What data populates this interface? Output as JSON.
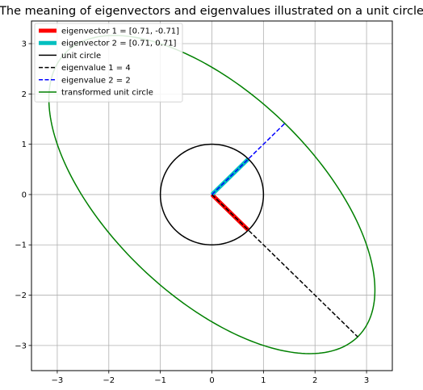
{
  "chart_data": {
    "type": "line",
    "title": "The meaning of eigenvectors and eigenvalues illustrated on a unit circle",
    "xlabel": "",
    "ylabel": "",
    "xlim": [
      -3.5,
      3.5
    ],
    "ylim": [
      -3.5,
      3.45
    ],
    "xticks": [
      -3,
      -2,
      -1,
      0,
      1,
      2,
      3
    ],
    "yticks": [
      -3,
      -2,
      -1,
      0,
      1,
      2,
      3
    ],
    "xtick_labels": [
      "−3",
      "−2",
      "−1",
      "0",
      "1",
      "2",
      "3"
    ],
    "ytick_labels": [
      "−3",
      "−2",
      "−1",
      "0",
      "1",
      "2",
      "3"
    ],
    "grid": true,
    "legend_position": "upper-left",
    "series": [
      {
        "name": "eigenvector 1 = [0.71, -0.71]",
        "kind": "segment",
        "color": "#ff0000",
        "linestyle": "solid",
        "linewidth": "thick",
        "x": [
          0,
          0.71
        ],
        "y": [
          0,
          -0.71
        ]
      },
      {
        "name": "eigenvector 2 = [0.71, 0.71]",
        "kind": "segment",
        "color": "#00bfbf",
        "linestyle": "solid",
        "linewidth": "thick",
        "x": [
          0,
          0.71
        ],
        "y": [
          0,
          0.71
        ]
      },
      {
        "name": "unit circle",
        "kind": "ellipse",
        "color": "#000000",
        "linestyle": "solid",
        "center": [
          0,
          0
        ],
        "matrix": [
          [
            1,
            0
          ],
          [
            0,
            1
          ]
        ]
      },
      {
        "name": "eigenvalue 1 = 4",
        "kind": "segment",
        "color": "#000000",
        "linestyle": "dashed",
        "x": [
          0,
          2.83
        ],
        "y": [
          0,
          -2.83
        ]
      },
      {
        "name": "eigenvalue 2 = 2",
        "kind": "segment",
        "color": "#0000ff",
        "linestyle": "dashed",
        "x": [
          0,
          1.41
        ],
        "y": [
          0,
          1.41
        ]
      },
      {
        "name": "transformed unit circle",
        "kind": "ellipse",
        "color": "#008000",
        "linestyle": "solid",
        "center": [
          0,
          0
        ],
        "matrix": [
          [
            3,
            -1
          ],
          [
            -1,
            3
          ]
        ]
      }
    ]
  }
}
